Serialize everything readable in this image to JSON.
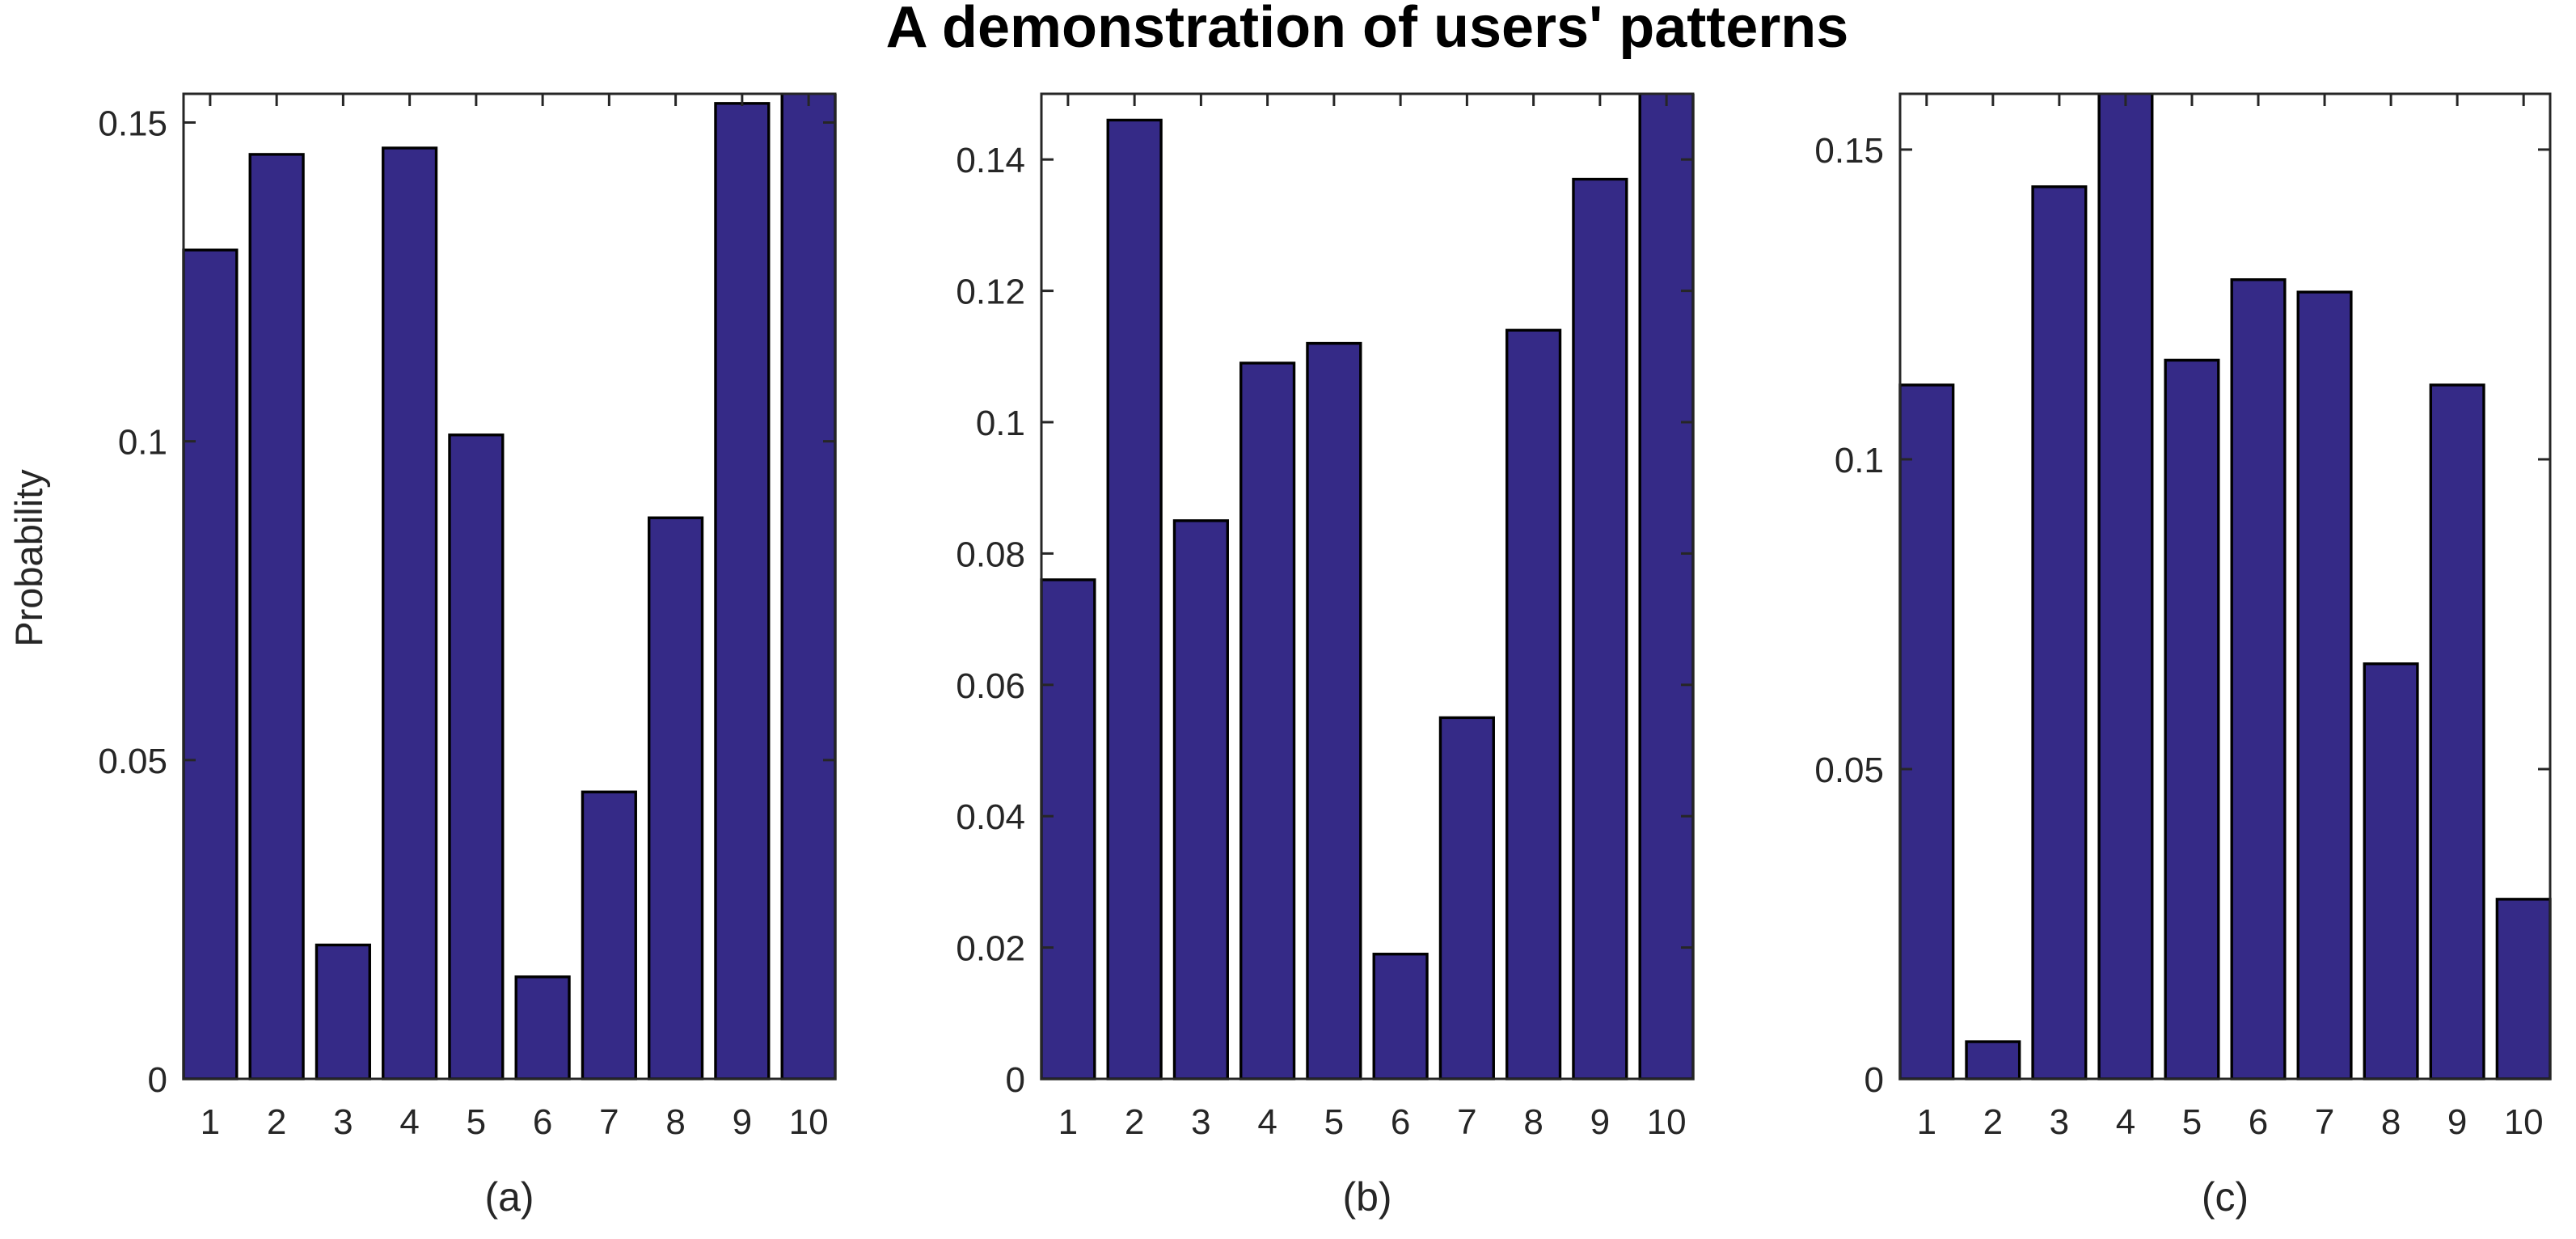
{
  "title": "A demonstration of users' patterns",
  "ylabel": "Probability",
  "colors": {
    "bar_fill": "#352A87",
    "bar_edge": "#000000",
    "axis": "#262626",
    "tick_label": "#262626",
    "title": "#000000",
    "background": "#ffffff"
  },
  "chart_data": [
    {
      "type": "bar",
      "sublabel": "(a)",
      "categories": [
        "1",
        "2",
        "3",
        "4",
        "5",
        "6",
        "7",
        "8",
        "9",
        "10"
      ],
      "values": [
        0.13,
        0.145,
        0.021,
        0.146,
        0.101,
        0.016,
        0.045,
        0.088,
        0.153,
        0.158
      ],
      "xlabel": "",
      "ylabel": "Probability",
      "ylim": [
        0,
        0.1545
      ],
      "yticks": [
        {
          "value": 0,
          "label": "0"
        },
        {
          "value": 0.05,
          "label": "0.05"
        },
        {
          "value": 0.1,
          "label": "0.1"
        },
        {
          "value": 0.15,
          "label": "0.15"
        }
      ],
      "grid": "off",
      "legend": "none",
      "bar_width_ratio": 0.8,
      "note_clipped_bars": [
        10
      ]
    },
    {
      "type": "bar",
      "sublabel": "(b)",
      "categories": [
        "1",
        "2",
        "3",
        "4",
        "5",
        "6",
        "7",
        "8",
        "9",
        "10"
      ],
      "values": [
        0.076,
        0.146,
        0.085,
        0.109,
        0.112,
        0.019,
        0.055,
        0.114,
        0.137,
        0.152
      ],
      "xlabel": "",
      "ylabel": "",
      "ylim": [
        0,
        0.15
      ],
      "yticks": [
        {
          "value": 0,
          "label": "0"
        },
        {
          "value": 0.02,
          "label": "0.02"
        },
        {
          "value": 0.04,
          "label": "0.04"
        },
        {
          "value": 0.06,
          "label": "0.06"
        },
        {
          "value": 0.08,
          "label": "0.08"
        },
        {
          "value": 0.1,
          "label": "0.1"
        },
        {
          "value": 0.12,
          "label": "0.12"
        },
        {
          "value": 0.14,
          "label": "0.14"
        }
      ],
      "grid": "off",
      "legend": "none",
      "bar_width_ratio": 0.8,
      "note_clipped_bars": [
        10
      ]
    },
    {
      "type": "bar",
      "sublabel": "(c)",
      "categories": [
        "1",
        "2",
        "3",
        "4",
        "5",
        "6",
        "7",
        "8",
        "9",
        "10"
      ],
      "values": [
        0.112,
        0.006,
        0.144,
        0.162,
        0.116,
        0.129,
        0.127,
        0.067,
        0.112,
        0.029
      ],
      "xlabel": "",
      "ylabel": "",
      "ylim": [
        0,
        0.159
      ],
      "yticks": [
        {
          "value": 0,
          "label": "0"
        },
        {
          "value": 0.05,
          "label": "0.05"
        },
        {
          "value": 0.1,
          "label": "0.1"
        },
        {
          "value": 0.15,
          "label": "0.15"
        }
      ],
      "grid": "off",
      "legend": "none",
      "bar_width_ratio": 0.8,
      "note_clipped_bars": [
        4
      ]
    }
  ]
}
